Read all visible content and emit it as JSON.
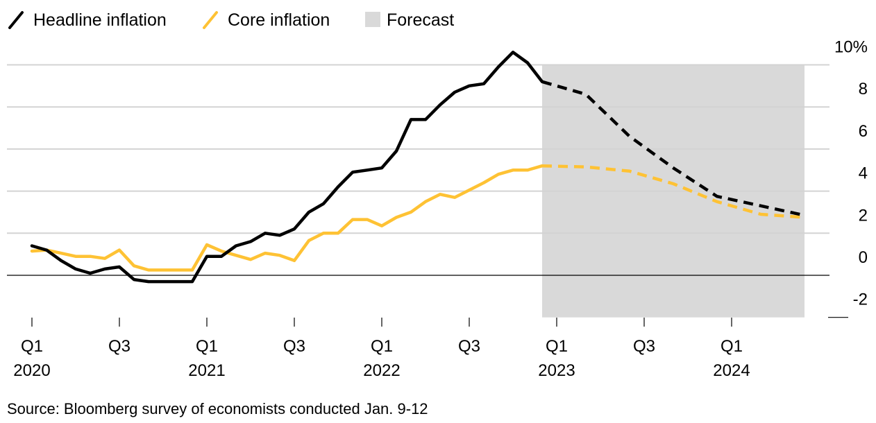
{
  "chart_data": {
    "type": "line",
    "title": "",
    "xlabel": "",
    "ylabel": "",
    "legend": {
      "placement": "top-left",
      "entries": [
        {
          "label": "Headline inflation",
          "color": "#000000",
          "kind": "line"
        },
        {
          "label": "Core inflation",
          "color": "#fec234",
          "kind": "line"
        },
        {
          "label": "Forecast",
          "color": "#d9d9d9",
          "kind": "box"
        }
      ]
    },
    "x_unit": "months since Jan 2020",
    "xlim": [
      0,
      54
    ],
    "ylim": [
      -2,
      10
    ],
    "y_ticks": [
      {
        "value": 10,
        "label": "10%"
      },
      {
        "value": 8,
        "label": "8"
      },
      {
        "value": 6,
        "label": "6"
      },
      {
        "value": 4,
        "label": "4"
      },
      {
        "value": 2,
        "label": "2"
      },
      {
        "value": 0,
        "label": "0"
      },
      {
        "value": -2,
        "label": "-2"
      }
    ],
    "x_ticks": [
      {
        "value": 0,
        "quarter": "Q1",
        "year": "2020"
      },
      {
        "value": 6,
        "quarter": "Q3",
        "year": ""
      },
      {
        "value": 12,
        "quarter": "Q1",
        "year": "2021"
      },
      {
        "value": 18,
        "quarter": "Q3",
        "year": ""
      },
      {
        "value": 24,
        "quarter": "Q1",
        "year": "2022"
      },
      {
        "value": 30,
        "quarter": "Q3",
        "year": ""
      },
      {
        "value": 36,
        "quarter": "Q1",
        "year": "2023"
      },
      {
        "value": 42,
        "quarter": "Q3",
        "year": ""
      },
      {
        "value": 48,
        "quarter": "Q1",
        "year": "2024"
      }
    ],
    "forecast_range": [
      35,
      53
    ],
    "series": [
      {
        "name": "Headline inflation",
        "color": "#000000",
        "actual": {
          "x": [
            0,
            1,
            2,
            3,
            4,
            5,
            6,
            7,
            8,
            9,
            10,
            11,
            12,
            13,
            14,
            15,
            16,
            17,
            18,
            19,
            20,
            21,
            22,
            23,
            24,
            25,
            26,
            27,
            28,
            29,
            30,
            31,
            32,
            33,
            34,
            35
          ],
          "y": [
            1.4,
            1.2,
            0.7,
            0.3,
            0.1,
            0.3,
            0.4,
            -0.2,
            -0.3,
            -0.3,
            -0.3,
            -0.3,
            0.9,
            0.9,
            1.4,
            1.6,
            2.0,
            1.9,
            2.2,
            3.0,
            3.4,
            4.2,
            4.9,
            5.0,
            5.1,
            5.9,
            7.4,
            7.4,
            8.1,
            8.7,
            9.0,
            9.1,
            9.9,
            10.6,
            10.1,
            9.2
          ]
        },
        "forecast": {
          "x": [
            35,
            38,
            41,
            44,
            47,
            50,
            53
          ],
          "y": [
            9.2,
            8.6,
            6.6,
            5.1,
            3.75,
            3.3,
            2.85
          ]
        }
      },
      {
        "name": "Core inflation",
        "color": "#fec234",
        "actual": {
          "x": [
            0,
            1,
            2,
            3,
            4,
            5,
            6,
            7,
            8,
            9,
            10,
            11,
            12,
            13,
            14,
            15,
            16,
            17,
            18,
            19,
            20,
            21,
            22,
            23,
            24,
            25,
            26,
            27,
            28,
            29,
            30,
            31,
            32,
            33,
            34,
            35
          ],
          "y": [
            1.15,
            1.2,
            1.05,
            0.9,
            0.9,
            0.8,
            1.2,
            0.45,
            0.25,
            0.25,
            0.25,
            0.25,
            1.45,
            1.15,
            0.95,
            0.75,
            1.05,
            0.95,
            0.7,
            1.65,
            2.0,
            2.0,
            2.65,
            2.65,
            2.35,
            2.75,
            3.0,
            3.5,
            3.85,
            3.7,
            4.05,
            4.4,
            4.8,
            5.0,
            5.0,
            5.2
          ]
        },
        "forecast": {
          "x": [
            35,
            38,
            41,
            44,
            47,
            50,
            53
          ],
          "y": [
            5.2,
            5.15,
            4.95,
            4.35,
            3.5,
            2.9,
            2.75
          ]
        }
      }
    ],
    "source": "Source: Bloomberg survey of economists conducted Jan. 9-12"
  }
}
